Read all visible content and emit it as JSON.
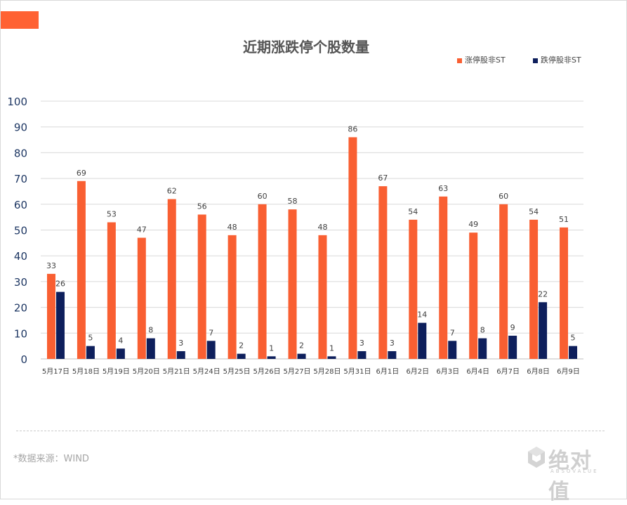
{
  "colors": {
    "accent": "#ff6233",
    "series_up": "#f95f32",
    "series_down": "#0e1f5c",
    "axis_text": "#1f3864",
    "grid": "#d9d9d9"
  },
  "logo": {
    "text": "绝对值",
    "sub": "ABSOVALUE",
    "icon": "cube-icon"
  },
  "source": "*数据来源：WIND",
  "chart_data": {
    "type": "bar",
    "title": "近期涨跌停个股数量",
    "xlabel": "",
    "ylabel": "",
    "ylim": [
      0,
      100
    ],
    "yticks": [
      0,
      10,
      20,
      30,
      40,
      50,
      60,
      70,
      80,
      90,
      100
    ],
    "grid": true,
    "legend_position": "top-right",
    "categories": [
      "5月17日",
      "5月18日",
      "5月19日",
      "5月20日",
      "5月21日",
      "5月24日",
      "5月25日",
      "5月26日",
      "5月27日",
      "5月28日",
      "5月31日",
      "6月1日",
      "6月2日",
      "6月3日",
      "6月4日",
      "6月7日",
      "6月8日",
      "6月9日"
    ],
    "series": [
      {
        "name": "涨停股非ST",
        "color": "#f95f32",
        "values": [
          33,
          69,
          53,
          47,
          62,
          56,
          48,
          60,
          58,
          48,
          86,
          67,
          54,
          63,
          49,
          60,
          54,
          51
        ]
      },
      {
        "name": "跌停股非ST",
        "color": "#0e1f5c",
        "values": [
          26,
          5,
          4,
          8,
          3,
          7,
          2,
          1,
          2,
          1,
          3,
          3,
          14,
          7,
          8,
          9,
          22,
          5
        ]
      }
    ]
  }
}
